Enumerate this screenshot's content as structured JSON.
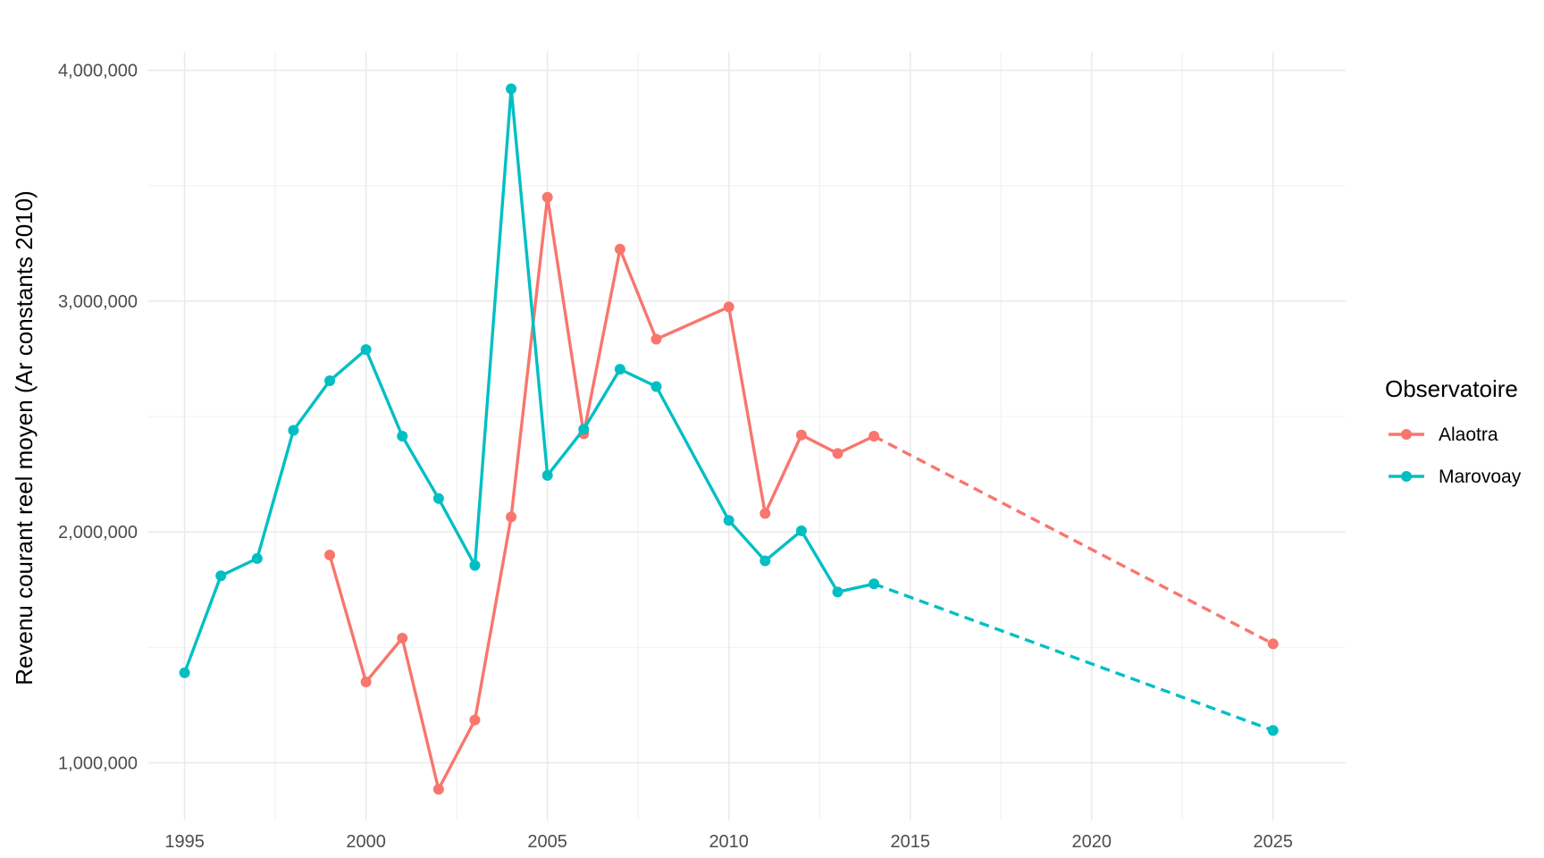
{
  "chart_data": {
    "type": "line",
    "title": "",
    "xlabel": "",
    "ylabel": "Revenu courant reel moyen (Ar constants 2010)",
    "xlim": [
      1994,
      2027
    ],
    "ylim": [
      750000,
      4080000
    ],
    "x_ticks": [
      1995,
      2000,
      2005,
      2010,
      2015,
      2020,
      2025
    ],
    "x_tick_labels": [
      "1995",
      "2000",
      "2005",
      "2010",
      "2015",
      "2020",
      "2025"
    ],
    "y_ticks": [
      1000000,
      2000000,
      3000000,
      4000000
    ],
    "y_tick_labels": [
      "1,000,000",
      "2,000,000",
      "3,000,000",
      "4,000,000"
    ],
    "grid": true,
    "legend": {
      "title": "Observatoire",
      "position": "right"
    },
    "series": [
      {
        "name": "Alaotra",
        "color": "#F8766D",
        "points": [
          [
            1999,
            1900000
          ],
          [
            2000,
            1350000
          ],
          [
            2001,
            1540000
          ],
          [
            2002,
            885000
          ],
          [
            2003,
            1185000
          ],
          [
            2004,
            2065000
          ],
          [
            2005,
            3450000
          ],
          [
            2006,
            2425000
          ],
          [
            2007,
            3225000
          ],
          [
            2008,
            2835000
          ],
          [
            2010,
            2975000
          ],
          [
            2011,
            2080000
          ],
          [
            2012,
            2420000
          ],
          [
            2013,
            2340000
          ],
          [
            2014,
            2415000
          ]
        ],
        "projection": [
          [
            2014,
            2415000
          ],
          [
            2025,
            1515000
          ]
        ]
      },
      {
        "name": "Marovoay",
        "color": "#00BFC4",
        "points": [
          [
            1995,
            1390000
          ],
          [
            1996,
            1810000
          ],
          [
            1997,
            1885000
          ],
          [
            1998,
            2440000
          ],
          [
            1999,
            2655000
          ],
          [
            2000,
            2790000
          ],
          [
            2001,
            2415000
          ],
          [
            2002,
            2145000
          ],
          [
            2003,
            1855000
          ],
          [
            2004,
            3920000
          ],
          [
            2005,
            2245000
          ],
          [
            2006,
            2445000
          ],
          [
            2007,
            2705000
          ],
          [
            2008,
            2630000
          ],
          [
            2010,
            2050000
          ],
          [
            2011,
            1875000
          ],
          [
            2012,
            2005000
          ],
          [
            2013,
            1740000
          ],
          [
            2014,
            1775000
          ]
        ],
        "projection": [
          [
            2014,
            1775000
          ],
          [
            2025,
            1140000
          ]
        ]
      }
    ]
  }
}
